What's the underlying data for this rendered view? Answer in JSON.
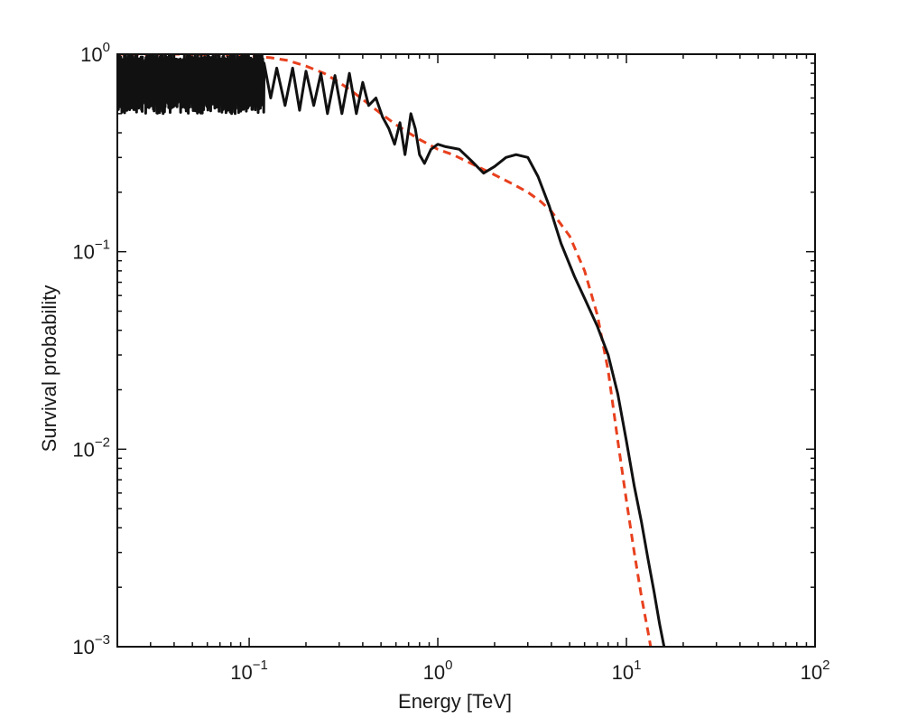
{
  "chart_data": {
    "type": "line",
    "title": "",
    "xlabel": "Energy [TeV]",
    "ylabel": "Survival probability",
    "xscale": "log",
    "yscale": "log",
    "xlim": [
      0.02,
      100
    ],
    "ylim": [
      0.001,
      1
    ],
    "grid": false,
    "legend": "none",
    "x_ticks": [
      {
        "value": 0.1,
        "base": "10",
        "exp": "−1"
      },
      {
        "value": 1,
        "base": "10",
        "exp": "0"
      },
      {
        "value": 10,
        "base": "10",
        "exp": "1"
      },
      {
        "value": 100,
        "base": "10",
        "exp": "2"
      }
    ],
    "y_ticks": [
      {
        "value": 1,
        "base": "10",
        "exp": "0"
      },
      {
        "value": 0.1,
        "base": "10",
        "exp": "−1"
      },
      {
        "value": 0.01,
        "base": "10",
        "exp": "−2"
      },
      {
        "value": 0.001,
        "base": "10",
        "exp": "−3"
      }
    ],
    "series": [
      {
        "style": "solid",
        "color": "#111111",
        "low_energy_oscillation": {
          "x_range": [
            0.02,
            0.12
          ],
          "y_min": 0.5,
          "y_max": 1.0
        },
        "x": [
          0.12,
          0.13,
          0.14,
          0.155,
          0.17,
          0.185,
          0.2,
          0.22,
          0.24,
          0.26,
          0.285,
          0.31,
          0.34,
          0.37,
          0.4,
          0.43,
          0.47,
          0.51,
          0.55,
          0.59,
          0.63,
          0.67,
          0.72,
          0.76,
          0.8,
          0.85,
          0.92,
          1.0,
          1.1,
          1.3,
          1.5,
          1.75,
          2.0,
          2.3,
          2.6,
          3.0,
          3.4,
          3.9,
          4.5,
          5.3,
          6.0,
          7.0,
          8.0,
          9.0,
          10.0,
          11.0,
          12.0,
          13.0,
          14.0,
          15.0,
          16.0,
          17.0
        ],
        "y": [
          0.9,
          0.6,
          0.85,
          0.55,
          0.85,
          0.52,
          0.82,
          0.55,
          0.8,
          0.5,
          0.78,
          0.5,
          0.8,
          0.5,
          0.72,
          0.55,
          0.6,
          0.48,
          0.42,
          0.35,
          0.45,
          0.31,
          0.5,
          0.42,
          0.31,
          0.28,
          0.33,
          0.35,
          0.34,
          0.33,
          0.29,
          0.25,
          0.27,
          0.3,
          0.31,
          0.3,
          0.24,
          0.17,
          0.11,
          0.075,
          0.058,
          0.042,
          0.03,
          0.019,
          0.011,
          0.0065,
          0.0043,
          0.0028,
          0.0019,
          0.0013,
          0.00095,
          0.0006
        ]
      },
      {
        "style": "dashed",
        "color": "#e8401e",
        "x": [
          0.02,
          0.05,
          0.1,
          0.13,
          0.16,
          0.2,
          0.25,
          0.3,
          0.35,
          0.4,
          0.5,
          0.6,
          0.7,
          0.8,
          1.0,
          1.2,
          1.5,
          2.0,
          2.5,
          3.0,
          3.5,
          4.0,
          5.0,
          6.0,
          7.0,
          8.0,
          9.0,
          10.0,
          11.0,
          12.0,
          13.0,
          14.0
        ],
        "y": [
          1.0,
          1.0,
          0.98,
          0.96,
          0.93,
          0.87,
          0.8,
          0.72,
          0.65,
          0.59,
          0.5,
          0.44,
          0.4,
          0.37,
          0.33,
          0.31,
          0.28,
          0.245,
          0.22,
          0.2,
          0.18,
          0.16,
          0.12,
          0.08,
          0.048,
          0.025,
          0.011,
          0.0055,
          0.003,
          0.0018,
          0.0012,
          0.0008
        ]
      }
    ]
  }
}
